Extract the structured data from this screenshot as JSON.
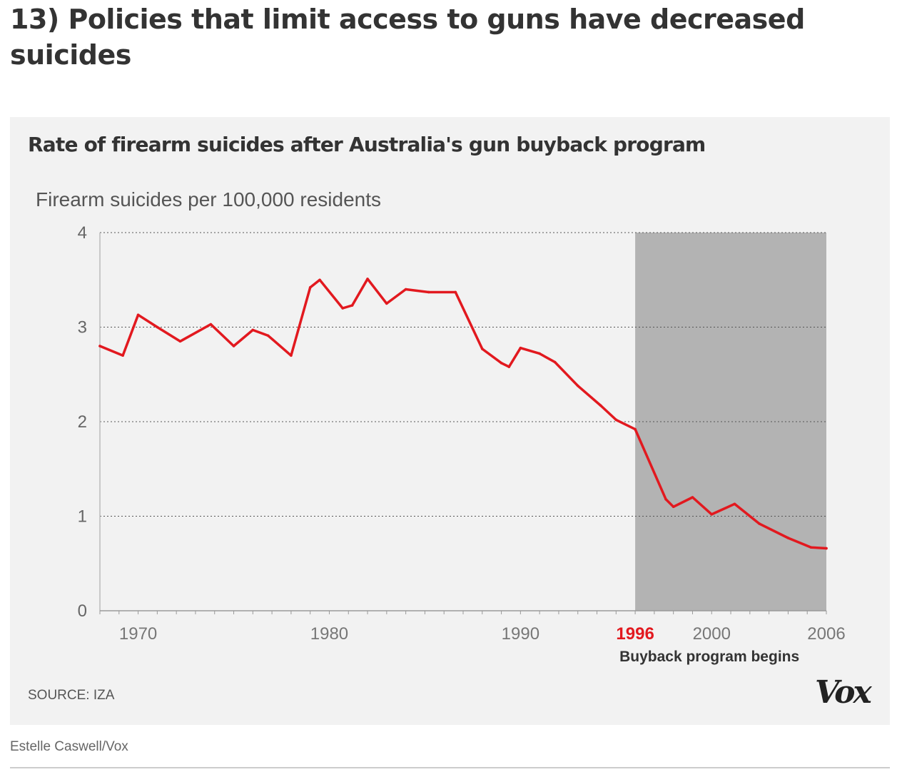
{
  "article": {
    "headline": "13) Policies that limit access to guns have decreased suicides",
    "credit": "Estelle Caswell/Vox"
  },
  "chart": {
    "source": "SOURCE: IZA",
    "logo": "Vox"
  },
  "colors": {
    "line": "#e2191f",
    "highlight_band": "#b3b3b3",
    "card_background": "#f2f2f2"
  },
  "chart_data": {
    "type": "line",
    "title": "Rate of firearm suicides after Australia's gun buyback program",
    "ylabel": "Firearm suicides per 100,000 residents",
    "xlabel": "",
    "xlim": [
      1968,
      2006
    ],
    "ylim": [
      0,
      4
    ],
    "yticks": [
      0,
      1,
      2,
      3,
      4
    ],
    "xticks": [
      "1970",
      "1980",
      "1990",
      "1996",
      "2000",
      "2006"
    ],
    "grid": "horizontal dotted",
    "highlight": {
      "from": 1996,
      "to": 2006,
      "label_year": "1996",
      "label": "Buyback program begins"
    },
    "series": [
      {
        "x": [
          1968,
          1969.2,
          1970,
          1971,
          1972.2,
          1973.8,
          1975,
          1976,
          1976.8,
          1978,
          1979,
          1979.5,
          1980.7,
          1981.2,
          1982,
          1983,
          1984,
          1985.2,
          1986.6,
          1988,
          1989,
          1989.4,
          1990,
          1991,
          1991.8,
          1993,
          1994.2,
          1995,
          1996,
          1997.6,
          1998,
          1999,
          2000,
          2001.2,
          2002.5,
          2004,
          2005.2,
          2006
        ],
        "y": [
          2.8,
          2.7,
          3.13,
          3.0,
          2.85,
          3.03,
          2.8,
          2.97,
          2.91,
          2.7,
          3.42,
          3.5,
          3.2,
          3.23,
          3.51,
          3.25,
          3.4,
          3.37,
          3.37,
          2.77,
          2.62,
          2.58,
          2.78,
          2.72,
          2.63,
          2.38,
          2.17,
          2.02,
          1.92,
          1.18,
          1.1,
          1.2,
          1.02,
          1.13,
          0.92,
          0.77,
          0.67,
          0.66
        ]
      }
    ]
  }
}
